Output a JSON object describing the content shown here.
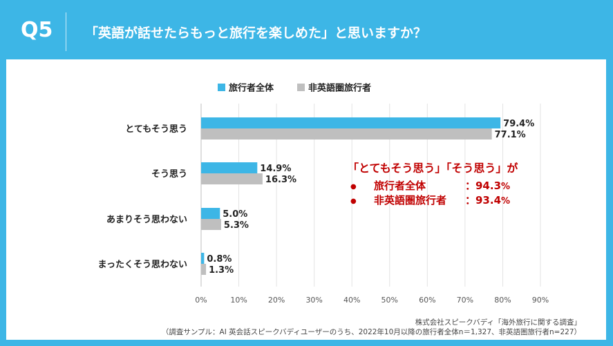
{
  "header": {
    "q_label": "Q5",
    "question": "「英語が話せたらもっと旅行を楽しめた」と思いますか？"
  },
  "colors": {
    "header_bg": "#3db6e6",
    "series_all": "#3db6e6",
    "series_non_english": "#bfbfbf",
    "callout": "#c00000"
  },
  "callout": {
    "title": "「とてもそう思う」「そう思う」が",
    "bullet": "●",
    "rows": [
      {
        "label": "旅行者全体",
        "value": "：94.3",
        "unit": "%"
      },
      {
        "label": "非英語圏旅行者",
        "value": "：93.4",
        "unit": "%"
      }
    ]
  },
  "source": {
    "line1": "株式会社スピークバディ「海外旅行に関する調査」",
    "line2": "（調査サンプル：AI 英会話スピークバディユーザーのうち、2022年10月以降の旅行者全体n＝1,327、非英語圏旅行者n=227）"
  },
  "chart_data": {
    "type": "bar",
    "orientation": "horizontal",
    "categories": [
      "とてもそう思う",
      "そう思う",
      "あまりそう思わない",
      "まったくそう思わない"
    ],
    "series": [
      {
        "name": "旅行者全体",
        "values": [
          79.4,
          14.9,
          5.0,
          0.8
        ],
        "labels": [
          "79.4%",
          "14.9%",
          "5.0%",
          "0.8%"
        ]
      },
      {
        "name": "非英語圏旅行者",
        "values": [
          77.1,
          16.3,
          5.3,
          1.3
        ],
        "labels": [
          "77.1%",
          "16.3%",
          "5.3%",
          "1.3%"
        ]
      }
    ],
    "xlim": [
      0,
      90
    ],
    "xticks": [
      0,
      10,
      20,
      30,
      40,
      50,
      60,
      70,
      80,
      90
    ],
    "xtick_labels": [
      "0%",
      "10%",
      "20%",
      "30%",
      "40%",
      "50%",
      "60%",
      "70%",
      "80%",
      "90%"
    ],
    "legend_position": "top",
    "grid": true
  }
}
